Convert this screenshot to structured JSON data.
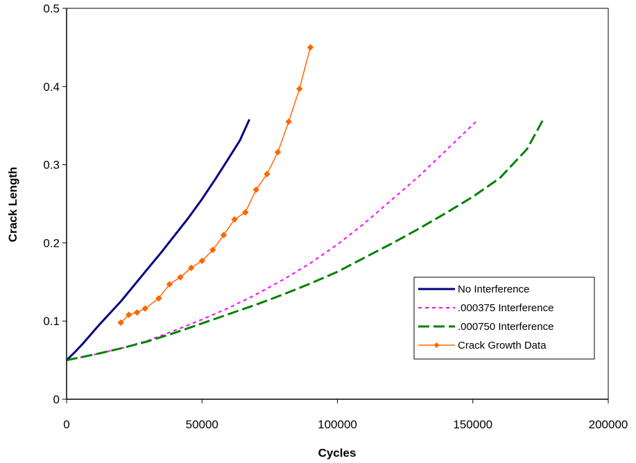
{
  "chart_data": {
    "type": "line",
    "title": "",
    "xlabel": "Cycles",
    "ylabel": "Crack Length",
    "xlim": [
      0,
      200000
    ],
    "ylim": [
      0,
      0.5
    ],
    "xticks": [
      0,
      50000,
      100000,
      150000,
      200000
    ],
    "xtick_labels": [
      "0",
      "50000",
      "100000",
      "150000",
      "200000"
    ],
    "yticks": [
      0,
      0.1,
      0.2,
      0.3,
      0.4,
      0.5
    ],
    "ytick_labels": [
      "0",
      "0.1",
      "0.2",
      "0.3",
      "0.4",
      "0.5"
    ],
    "grid": false,
    "legend_position": "lower-right",
    "series": [
      {
        "name": "No Interference",
        "color": "#000080",
        "style": "solid",
        "marker": "none",
        "x": [
          0,
          3000,
          6000,
          9000,
          12000,
          16000,
          20000,
          25000,
          30000,
          35000,
          40000,
          45000,
          50000,
          55000,
          60000,
          64000,
          67500
        ],
        "y": [
          0.05,
          0.06,
          0.071,
          0.083,
          0.095,
          0.11,
          0.125,
          0.146,
          0.167,
          0.188,
          0.21,
          0.232,
          0.256,
          0.282,
          0.309,
          0.331,
          0.358
        ]
      },
      {
        "name": ".000375 Interference",
        "color": "#FF00FF",
        "style": "dotted",
        "marker": "none",
        "x": [
          0,
          10000,
          20000,
          30000,
          40000,
          50000,
          60000,
          70000,
          80000,
          90000,
          100000,
          110000,
          120000,
          130000,
          140000,
          152000
        ],
        "y": [
          0.05,
          0.057,
          0.065,
          0.075,
          0.088,
          0.102,
          0.117,
          0.134,
          0.153,
          0.174,
          0.198,
          0.225,
          0.255,
          0.285,
          0.318,
          0.358
        ]
      },
      {
        "name": ".000750 Interference",
        "color": "#008000",
        "style": "dashed",
        "marker": "none",
        "x": [
          0,
          10000,
          20000,
          30000,
          40000,
          50000,
          60000,
          70000,
          80000,
          90000,
          100000,
          110000,
          120000,
          130000,
          140000,
          150000,
          160000,
          170000,
          176000
        ],
        "y": [
          0.05,
          0.057,
          0.065,
          0.074,
          0.085,
          0.097,
          0.109,
          0.121,
          0.134,
          0.148,
          0.163,
          0.181,
          0.199,
          0.218,
          0.238,
          0.259,
          0.283,
          0.32,
          0.358
        ]
      },
      {
        "name": "Crack Growth Data",
        "color": "#FF6600",
        "style": "solid",
        "marker": "diamond",
        "x": [
          20000,
          23000,
          26000,
          29000,
          34000,
          38000,
          42000,
          46000,
          50000,
          54000,
          58000,
          62000,
          66000,
          70000,
          74000,
          78000,
          82000,
          86000,
          90000
        ],
        "y": [
          0.098,
          0.108,
          0.111,
          0.116,
          0.129,
          0.147,
          0.156,
          0.168,
          0.177,
          0.191,
          0.21,
          0.23,
          0.239,
          0.268,
          0.288,
          0.316,
          0.355,
          0.397,
          0.45
        ]
      }
    ]
  }
}
